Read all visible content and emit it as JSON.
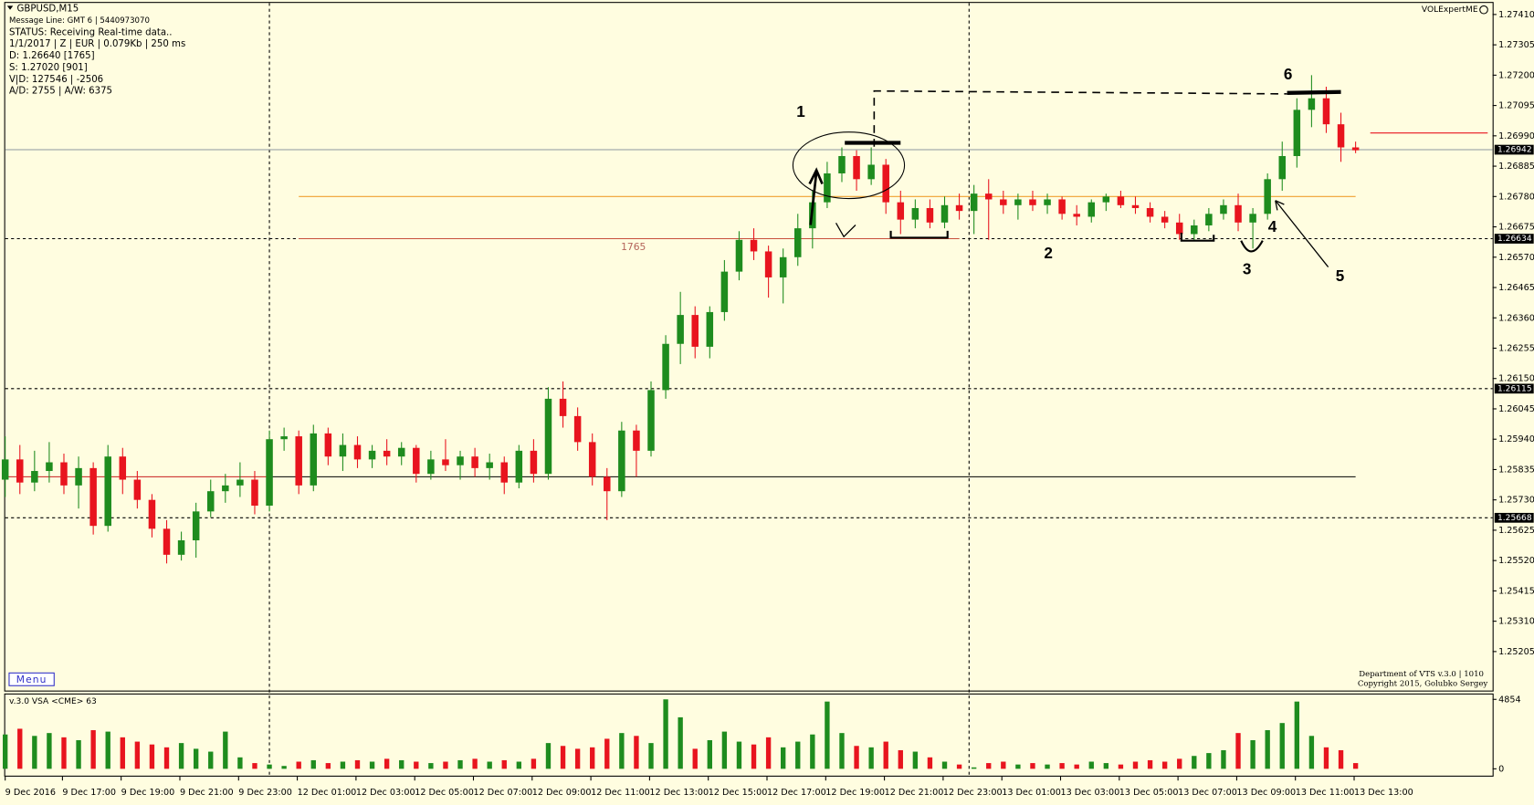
{
  "header": {
    "symbol": "GBPUSD,M15",
    "brand": "VOLExpertME",
    "lines": [
      "Message Line: GMT 6 | 5440973070",
      "STATUS:  Receiving Real-time data..",
      "1/1/2017 | Z | EUR | 0.079Kb | 250 ms",
      "D: 1.26640  [1765]",
      "S: 1.27020  [901]",
      "V|D: 127546 | -2506",
      "A/D: 2755 | A/W: 6375"
    ]
  },
  "chart_data": {
    "type": "candlestick",
    "up_color": "#1e8c1e",
    "down_color": "#e8141e",
    "ylim": [
      1.2507,
      1.2745
    ],
    "yticks": [
      {
        "value": 1.2741,
        "label": "1.27410"
      },
      1.27305,
      {
        "value": 1.272,
        "label": "1.27200"
      },
      1.27095,
      {
        "value": 1.2699,
        "label": "1.26990"
      },
      1.26885,
      {
        "value": 1.2678,
        "label": "1.26780"
      },
      1.26675,
      {
        "value": 1.2657,
        "label": "1.26570"
      },
      1.26465,
      {
        "value": 1.2636,
        "label": "1.26360"
      },
      1.26255,
      {
        "value": 1.2615,
        "label": "1.26150"
      },
      1.26045,
      {
        "value": 1.2594,
        "label": "1.25940"
      },
      1.25835,
      {
        "value": 1.2573,
        "label": "1.25730"
      },
      1.25625,
      {
        "value": 1.2552,
        "label": "1.25520"
      },
      1.25415,
      {
        "value": 1.2531,
        "label": "1.25310"
      },
      1.25205
    ],
    "xticks": [
      {
        "value": 0,
        "label": "9 Dec 2016"
      },
      {
        "value": 3.9,
        "label": "9 Dec 17:00"
      },
      {
        "value": 7.9,
        "label": "9 Dec 19:00"
      },
      {
        "value": 11.9,
        "label": "9 Dec 21:00"
      },
      {
        "value": 15.9,
        "label": "9 Dec 23:00"
      },
      {
        "value": 19.9,
        "label": "12 Dec 01:00"
      },
      {
        "value": 23.9,
        "label": "12 Dec 03:00"
      },
      {
        "value": 27.9,
        "label": "12 Dec 05:00"
      },
      {
        "value": 31.9,
        "label": "12 Dec 07:00"
      },
      {
        "value": 35.9,
        "label": "12 Dec 09:00"
      },
      {
        "value": 39.9,
        "label": "12 Dec 11:00"
      },
      {
        "value": 43.9,
        "label": "12 Dec 13:00"
      },
      {
        "value": 47.9,
        "label": "12 Dec 15:00"
      },
      {
        "value": 51.9,
        "label": "12 Dec 17:00"
      },
      {
        "value": 55.9,
        "label": "12 Dec 19:00"
      },
      {
        "value": 59.9,
        "label": "12 Dec 21:00"
      },
      {
        "value": 63.9,
        "label": "12 Dec 23:00"
      },
      {
        "value": 67.9,
        "label": "13 Dec 01:00"
      },
      {
        "value": 71.9,
        "label": "13 Dec 03:00"
      },
      {
        "value": 75.9,
        "label": "13 Dec 05:00"
      },
      {
        "value": 79.9,
        "label": "13 Dec 07:00"
      },
      {
        "value": 83.9,
        "label": "13 Dec 09:00"
      },
      {
        "value": 87.9,
        "label": "13 Dec 11:00"
      },
      {
        "value": 91.9,
        "label": "13 Dec 13:00"
      }
    ],
    "candles": [
      [
        1.258,
        1.2595,
        1.2574,
        1.2587
      ],
      [
        1.2587,
        1.2592,
        1.2575,
        1.2579
      ],
      [
        1.2579,
        1.259,
        1.2576,
        1.2583
      ],
      [
        1.2583,
        1.2593,
        1.2579,
        1.2586
      ],
      [
        1.2586,
        1.2589,
        1.2575,
        1.2578
      ],
      [
        1.2578,
        1.2588,
        1.257,
        1.2584
      ],
      [
        1.2584,
        1.2586,
        1.2561,
        1.2564
      ],
      [
        1.2564,
        1.2592,
        1.2562,
        1.2588
      ],
      [
        1.2588,
        1.2591,
        1.2575,
        1.258
      ],
      [
        1.258,
        1.2583,
        1.257,
        1.2573
      ],
      [
        1.2573,
        1.2575,
        1.256,
        1.2563
      ],
      [
        1.2563,
        1.2566,
        1.2551,
        1.2554
      ],
      [
        1.2554,
        1.2562,
        1.2552,
        1.2559
      ],
      [
        1.2559,
        1.2572,
        1.2553,
        1.2569
      ],
      [
        1.2569,
        1.258,
        1.2567,
        1.2576
      ],
      [
        1.2576,
        1.2582,
        1.2572,
        1.2578
      ],
      [
        1.2578,
        1.2586,
        1.2574,
        1.258
      ],
      [
        1.258,
        1.2583,
        1.2568,
        1.2571
      ],
      [
        1.2571,
        1.2597,
        1.2569,
        1.2594
      ],
      [
        1.2594,
        1.2598,
        1.259,
        1.2595
      ],
      [
        1.2595,
        1.2597,
        1.2575,
        1.2578
      ],
      [
        1.2578,
        1.2599,
        1.2576,
        1.2596
      ],
      [
        1.2596,
        1.2598,
        1.2585,
        1.2588
      ],
      [
        1.2588,
        1.2596,
        1.2583,
        1.2592
      ],
      [
        1.2592,
        1.2595,
        1.2584,
        1.2587
      ],
      [
        1.2587,
        1.2592,
        1.2584,
        1.259
      ],
      [
        1.259,
        1.2594,
        1.2585,
        1.2588
      ],
      [
        1.2588,
        1.2593,
        1.2585,
        1.2591
      ],
      [
        1.2591,
        1.2592,
        1.2579,
        1.2582
      ],
      [
        1.2582,
        1.259,
        1.258,
        1.2587
      ],
      [
        1.2587,
        1.2594,
        1.2583,
        1.2585
      ],
      [
        1.2585,
        1.259,
        1.258,
        1.2588
      ],
      [
        1.2588,
        1.2591,
        1.2581,
        1.2584
      ],
      [
        1.2584,
        1.2589,
        1.258,
        1.2586
      ],
      [
        1.2586,
        1.2588,
        1.2575,
        1.2579
      ],
      [
        1.2579,
        1.2592,
        1.2577,
        1.259
      ],
      [
        1.259,
        1.2594,
        1.2579,
        1.2582
      ],
      [
        1.2582,
        1.2612,
        1.258,
        1.2608
      ],
      [
        1.2608,
        1.2614,
        1.2598,
        1.2602
      ],
      [
        1.2602,
        1.2605,
        1.259,
        1.2593
      ],
      [
        1.2593,
        1.2596,
        1.2578,
        1.2581
      ],
      [
        1.2581,
        1.2584,
        1.2566,
        1.2576
      ],
      [
        1.2576,
        1.26,
        1.2574,
        1.2597
      ],
      [
        1.2597,
        1.2599,
        1.2581,
        1.259
      ],
      [
        1.259,
        1.2614,
        1.2588,
        1.2611
      ],
      [
        1.2611,
        1.263,
        1.2608,
        1.2627
      ],
      [
        1.2627,
        1.2645,
        1.262,
        1.2637
      ],
      [
        1.2637,
        1.264,
        1.2622,
        1.2626
      ],
      [
        1.2626,
        1.264,
        1.2622,
        1.2638
      ],
      [
        1.2638,
        1.2656,
        1.2635,
        1.2652
      ],
      [
        1.2652,
        1.2666,
        1.2649,
        1.2663
      ],
      [
        1.2663,
        1.2667,
        1.2656,
        1.2659
      ],
      [
        1.2659,
        1.2661,
        1.2643,
        1.265
      ],
      [
        1.265,
        1.266,
        1.2641,
        1.2657
      ],
      [
        1.2657,
        1.2672,
        1.2654,
        1.2667
      ],
      [
        1.2667,
        1.268,
        1.266,
        1.2676
      ],
      [
        1.2676,
        1.269,
        1.2674,
        1.2686
      ],
      [
        1.2686,
        1.2695,
        1.2683,
        1.2692
      ],
      [
        1.2692,
        1.2694,
        1.268,
        1.2684
      ],
      [
        1.2684,
        1.2695,
        1.2682,
        1.2689
      ],
      [
        1.2689,
        1.2691,
        1.2672,
        1.2676
      ],
      [
        1.2676,
        1.268,
        1.2665,
        1.267
      ],
      [
        1.267,
        1.2677,
        1.2667,
        1.2674
      ],
      [
        1.2674,
        1.2677,
        1.2667,
        1.2669
      ],
      [
        1.2669,
        1.2678,
        1.2667,
        1.2675
      ],
      [
        1.2675,
        1.2679,
        1.267,
        1.2673
      ],
      [
        1.2673,
        1.2682,
        1.2665,
        1.2679
      ],
      [
        1.2679,
        1.2684,
        1.2663,
        1.2677
      ],
      [
        1.2677,
        1.268,
        1.2672,
        1.2675
      ],
      [
        1.2675,
        1.2679,
        1.267,
        1.2677
      ],
      [
        1.2677,
        1.268,
        1.2673,
        1.2675
      ],
      [
        1.2675,
        1.2679,
        1.2672,
        1.2677
      ],
      [
        1.2677,
        1.2678,
        1.267,
        1.2672
      ],
      [
        1.2672,
        1.2675,
        1.2668,
        1.2671
      ],
      [
        1.2671,
        1.2677,
        1.2669,
        1.2676
      ],
      [
        1.2676,
        1.2679,
        1.2673,
        1.2678
      ],
      [
        1.2678,
        1.268,
        1.2674,
        1.2675
      ],
      [
        1.2675,
        1.2678,
        1.2672,
        1.2674
      ],
      [
        1.2674,
        1.2676,
        1.2669,
        1.2671
      ],
      [
        1.2671,
        1.2673,
        1.2667,
        1.2669
      ],
      [
        1.2669,
        1.2672,
        1.2663,
        1.2665
      ],
      [
        1.2665,
        1.267,
        1.2663,
        1.2668
      ],
      [
        1.2668,
        1.2674,
        1.2666,
        1.2672
      ],
      [
        1.2672,
        1.2677,
        1.267,
        1.2675
      ],
      [
        1.2675,
        1.2679,
        1.2666,
        1.2669
      ],
      [
        1.2669,
        1.2674,
        1.266,
        1.2672
      ],
      [
        1.2672,
        1.2686,
        1.267,
        1.2684
      ],
      [
        1.2684,
        1.2697,
        1.268,
        1.2692
      ],
      [
        1.2692,
        1.2712,
        1.2688,
        1.2708
      ],
      [
        1.2708,
        1.272,
        1.2702,
        1.2712
      ],
      [
        1.2712,
        1.2716,
        1.27,
        1.2703
      ],
      [
        1.2703,
        1.2707,
        1.269,
        1.2695
      ],
      [
        1.2695,
        1.2697,
        1.2693,
        1.2694
      ]
    ],
    "volume_title": "v.3.0 VSA <CME> 63",
    "volume_ylim": [
      0,
      4854
    ],
    "volume_ticks": [
      4854,
      0
    ],
    "volumes": [
      2400,
      2800,
      2300,
      2500,
      2200,
      2000,
      2700,
      2600,
      2200,
      1900,
      1700,
      1500,
      1800,
      1400,
      1200,
      2600,
      800,
      400,
      300,
      200,
      500,
      600,
      400,
      500,
      600,
      500,
      700,
      600,
      500,
      400,
      500,
      600,
      700,
      500,
      600,
      500,
      700,
      1800,
      1600,
      1400,
      1500,
      2100,
      2500,
      2300,
      1800,
      4854,
      3600,
      1400,
      2000,
      2600,
      1900,
      1700,
      2200,
      1500,
      1900,
      2400,
      4700,
      2500,
      1600,
      1500,
      1900,
      1300,
      1200,
      800,
      500,
      300,
      100,
      400,
      500,
      300,
      400,
      300,
      400,
      300,
      500,
      400,
      300,
      500,
      600,
      500,
      700,
      900,
      1100,
      1300,
      2500,
      2000,
      2700,
      3200,
      4700,
      2300,
      1500,
      1300,
      400
    ],
    "price_labels": [
      1.26942,
      1.26634,
      1.26115,
      1.25668
    ],
    "levels": [
      {
        "price": 1.26942,
        "color": "#8c96a0"
      },
      {
        "price": 1.26634,
        "color": "#000000",
        "dashed": true
      },
      {
        "price": 1.26115,
        "color": "#000000",
        "dashed": true
      },
      {
        "price": 1.25668,
        "color": "#000000",
        "dashed": true
      },
      {
        "price": 1.2678,
        "color": "#f0a030",
        "from": 20,
        "to": 92
      },
      {
        "price": 1.26634,
        "color": "#c8503c",
        "from": 20,
        "to": 65
      },
      {
        "price": 1.2581,
        "color": "#000000",
        "from": 18,
        "to": 92
      },
      {
        "price": 1.2581,
        "color": "#c81e1e",
        "from": 0,
        "to": 18
      },
      {
        "price": 1.27,
        "color": "#e8141e",
        "from": 93,
        "to": 101
      }
    ],
    "annotations": [
      "1",
      "2",
      "3",
      "4",
      "5",
      "6"
    ],
    "level_note": "1765"
  },
  "footer": {
    "menu": "Menu",
    "credit": "Department of VTS  v.3.0 | 1010",
    "copyright": "Copyright 2015, Golubko Sergey"
  }
}
